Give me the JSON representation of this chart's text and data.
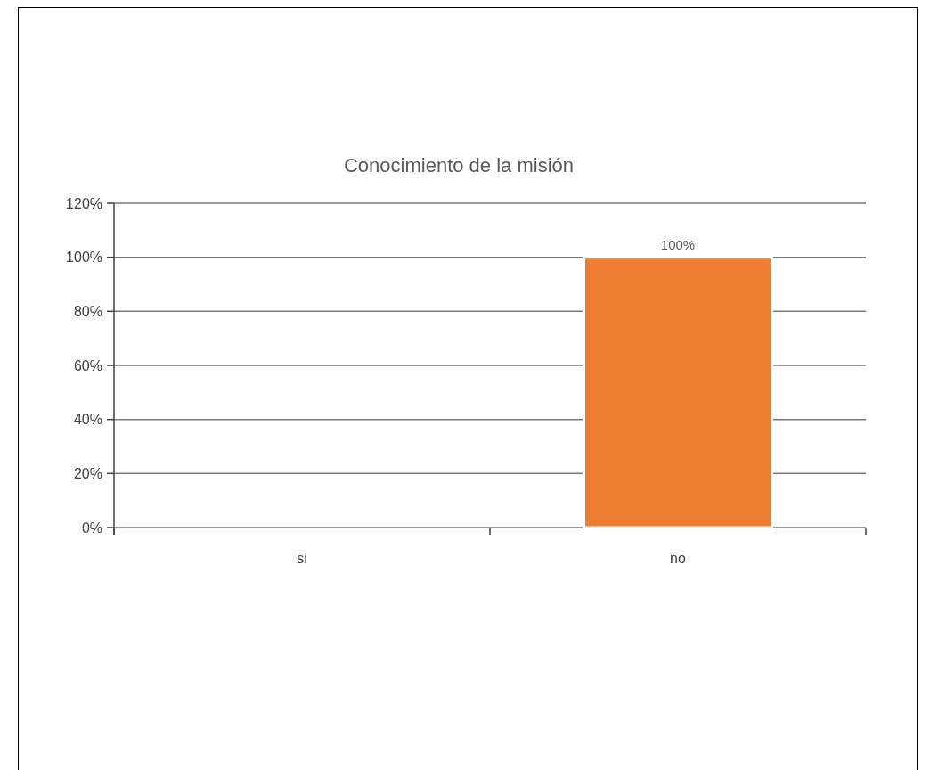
{
  "chart_data": {
    "type": "bar",
    "title": "Conocimiento de la misión",
    "categories": [
      "si",
      "no"
    ],
    "values": [
      0,
      100
    ],
    "color": "#ed7d31",
    "value_labels": [
      null,
      "100%"
    ],
    "ylim": [
      0,
      120
    ],
    "yticks": [
      {
        "value": 0,
        "label": "0%"
      },
      {
        "value": 20,
        "label": "20%"
      },
      {
        "value": 40,
        "label": "40%"
      },
      {
        "value": 60,
        "label": "60%"
      },
      {
        "value": 80,
        "label": "80%"
      },
      {
        "value": 100,
        "label": "100%"
      },
      {
        "value": 120,
        "label": "120%"
      }
    ],
    "grid": "y"
  }
}
